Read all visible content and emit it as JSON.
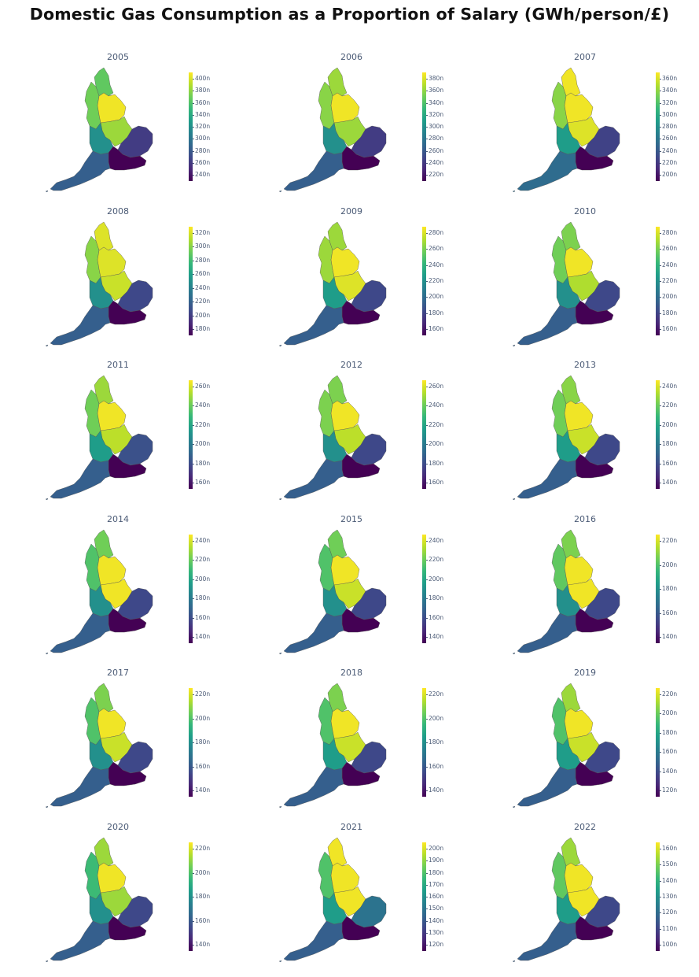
{
  "title": "Domestic Gas Consumption as a Proportion of Salary (GWh/person/£)",
  "colormap": [
    "#440154",
    "#482878",
    "#3e4989",
    "#31688e",
    "#26828e",
    "#1f9e89",
    "#35b779",
    "#6ece58",
    "#b5de2b",
    "#fde725"
  ],
  "regions": [
    "north-east",
    "north-west",
    "yorkshire-humber",
    "east-midlands",
    "west-midlands",
    "east-of-england",
    "london-south-east",
    "south-west"
  ],
  "panels": [
    {
      "year": "2005",
      "ticks": [
        "400n",
        "380n",
        "360n",
        "340n",
        "320n",
        "300n",
        "280n",
        "260n",
        "240n"
      ],
      "colors": {
        "north-east": 0.75,
        "north-west": 0.78,
        "yorkshire-humber": 0.98,
        "east-midlands": 0.85,
        "west-midlands": 0.5,
        "east-of-england": 0.18,
        "london-south-east": 0.0,
        "south-west": 0.3
      }
    },
    {
      "year": "2006",
      "ticks": [
        "380n",
        "360n",
        "340n",
        "320n",
        "300n",
        "280n",
        "260n",
        "240n",
        "220n"
      ],
      "colors": {
        "north-east": 0.85,
        "north-west": 0.82,
        "yorkshire-humber": 0.98,
        "east-midlands": 0.85,
        "west-midlands": 0.5,
        "east-of-england": 0.18,
        "london-south-east": 0.0,
        "south-west": 0.3
      }
    },
    {
      "year": "2007",
      "ticks": [
        "360n",
        "340n",
        "320n",
        "300n",
        "280n",
        "260n",
        "240n",
        "220n",
        "200n"
      ],
      "colors": {
        "north-east": 0.98,
        "north-west": 0.82,
        "yorkshire-humber": 0.98,
        "east-midlands": 0.95,
        "west-midlands": 0.55,
        "east-of-england": 0.2,
        "london-south-east": 0.0,
        "south-west": 0.35
      }
    },
    {
      "year": "2008",
      "ticks": [
        "320n",
        "300n",
        "280n",
        "260n",
        "240n",
        "220n",
        "200n",
        "180n"
      ],
      "colors": {
        "north-east": 0.95,
        "north-west": 0.82,
        "yorkshire-humber": 0.95,
        "east-midlands": 0.92,
        "west-midlands": 0.5,
        "east-of-england": 0.22,
        "london-south-east": 0.0,
        "south-west": 0.3
      }
    },
    {
      "year": "2009",
      "ticks": [
        "280n",
        "260n",
        "240n",
        "220n",
        "200n",
        "180n",
        "160n"
      ],
      "colors": {
        "north-east": 0.85,
        "north-west": 0.85,
        "yorkshire-humber": 0.98,
        "east-midlands": 0.95,
        "west-midlands": 0.55,
        "east-of-england": 0.22,
        "london-south-east": 0.0,
        "south-west": 0.3
      }
    },
    {
      "year": "2010",
      "ticks": [
        "280n",
        "260n",
        "240n",
        "220n",
        "200n",
        "180n",
        "160n"
      ],
      "colors": {
        "north-east": 0.8,
        "north-west": 0.78,
        "yorkshire-humber": 0.98,
        "east-midlands": 0.88,
        "west-midlands": 0.5,
        "east-of-england": 0.22,
        "london-south-east": 0.0,
        "south-west": 0.3
      }
    },
    {
      "year": "2011",
      "ticks": [
        "260n",
        "240n",
        "220n",
        "200n",
        "180n",
        "160n"
      ],
      "colors": {
        "north-east": 0.85,
        "north-west": 0.78,
        "yorkshire-humber": 0.98,
        "east-midlands": 0.9,
        "west-midlands": 0.55,
        "east-of-england": 0.25,
        "london-south-east": 0.0,
        "south-west": 0.3
      }
    },
    {
      "year": "2012",
      "ticks": [
        "260n",
        "240n",
        "220n",
        "200n",
        "180n",
        "160n"
      ],
      "colors": {
        "north-east": 0.8,
        "north-west": 0.8,
        "yorkshire-humber": 0.98,
        "east-midlands": 0.9,
        "west-midlands": 0.5,
        "east-of-england": 0.22,
        "london-south-east": 0.0,
        "south-west": 0.3
      }
    },
    {
      "year": "2013",
      "ticks": [
        "240n",
        "220n",
        "200n",
        "180n",
        "160n",
        "140n"
      ],
      "colors": {
        "north-east": 0.82,
        "north-west": 0.78,
        "yorkshire-humber": 0.98,
        "east-midlands": 0.92,
        "west-midlands": 0.55,
        "east-of-england": 0.22,
        "london-south-east": 0.0,
        "south-west": 0.3
      }
    },
    {
      "year": "2014",
      "ticks": [
        "240n",
        "220n",
        "200n",
        "180n",
        "160n",
        "140n"
      ],
      "colors": {
        "north-east": 0.78,
        "north-west": 0.72,
        "yorkshire-humber": 0.98,
        "east-midlands": 0.98,
        "west-midlands": 0.5,
        "east-of-england": 0.22,
        "london-south-east": 0.0,
        "south-west": 0.3
      }
    },
    {
      "year": "2015",
      "ticks": [
        "240n",
        "220n",
        "200n",
        "180n",
        "160n",
        "140n"
      ],
      "colors": {
        "north-east": 0.78,
        "north-west": 0.72,
        "yorkshire-humber": 0.98,
        "east-midlands": 0.92,
        "west-midlands": 0.5,
        "east-of-england": 0.22,
        "london-south-east": 0.0,
        "south-west": 0.3
      }
    },
    {
      "year": "2016",
      "ticks": [
        "220n",
        "200n",
        "180n",
        "160n",
        "140n"
      ],
      "colors": {
        "north-east": 0.8,
        "north-west": 0.75,
        "yorkshire-humber": 0.98,
        "east-midlands": 0.98,
        "west-midlands": 0.5,
        "east-of-england": 0.22,
        "london-south-east": 0.0,
        "south-west": 0.3
      }
    },
    {
      "year": "2017",
      "ticks": [
        "220n",
        "200n",
        "180n",
        "160n",
        "140n"
      ],
      "colors": {
        "north-east": 0.8,
        "north-west": 0.72,
        "yorkshire-humber": 0.98,
        "east-midlands": 0.92,
        "west-midlands": 0.5,
        "east-of-england": 0.22,
        "london-south-east": 0.0,
        "south-west": 0.3
      }
    },
    {
      "year": "2018",
      "ticks": [
        "220n",
        "200n",
        "180n",
        "160n",
        "140n"
      ],
      "colors": {
        "north-east": 0.8,
        "north-west": 0.72,
        "yorkshire-humber": 0.98,
        "east-midlands": 0.92,
        "west-midlands": 0.55,
        "east-of-england": 0.22,
        "london-south-east": 0.0,
        "south-west": 0.3
      }
    },
    {
      "year": "2019",
      "ticks": [
        "220n",
        "200n",
        "180n",
        "160n",
        "140n",
        "120n"
      ],
      "colors": {
        "north-east": 0.85,
        "north-west": 0.72,
        "yorkshire-humber": 0.98,
        "east-midlands": 0.92,
        "west-midlands": 0.55,
        "east-of-england": 0.22,
        "london-south-east": 0.0,
        "south-west": 0.3
      }
    },
    {
      "year": "2020",
      "ticks": [
        "220n",
        "200n",
        "180n",
        "160n",
        "140n"
      ],
      "colors": {
        "north-east": 0.85,
        "north-west": 0.68,
        "yorkshire-humber": 0.98,
        "east-midlands": 0.85,
        "west-midlands": 0.5,
        "east-of-england": 0.22,
        "london-south-east": 0.0,
        "south-west": 0.3
      }
    },
    {
      "year": "2021",
      "ticks": [
        "200n",
        "190n",
        "180n",
        "170n",
        "160n",
        "150n",
        "140n",
        "130n",
        "120n"
      ],
      "colors": {
        "north-east": 0.98,
        "north-west": 0.72,
        "yorkshire-humber": 0.98,
        "east-midlands": 0.98,
        "west-midlands": 0.55,
        "east-of-england": 0.38,
        "london-south-east": 0.0,
        "south-west": 0.3
      }
    },
    {
      "year": "2022",
      "ticks": [
        "160n",
        "150n",
        "140n",
        "130n",
        "120n",
        "110n",
        "100n"
      ],
      "colors": {
        "north-east": 0.85,
        "north-west": 0.75,
        "yorkshire-humber": 0.98,
        "east-midlands": 0.98,
        "west-midlands": 0.55,
        "east-of-england": 0.22,
        "london-south-east": 0.0,
        "south-west": 0.3
      }
    }
  ]
}
